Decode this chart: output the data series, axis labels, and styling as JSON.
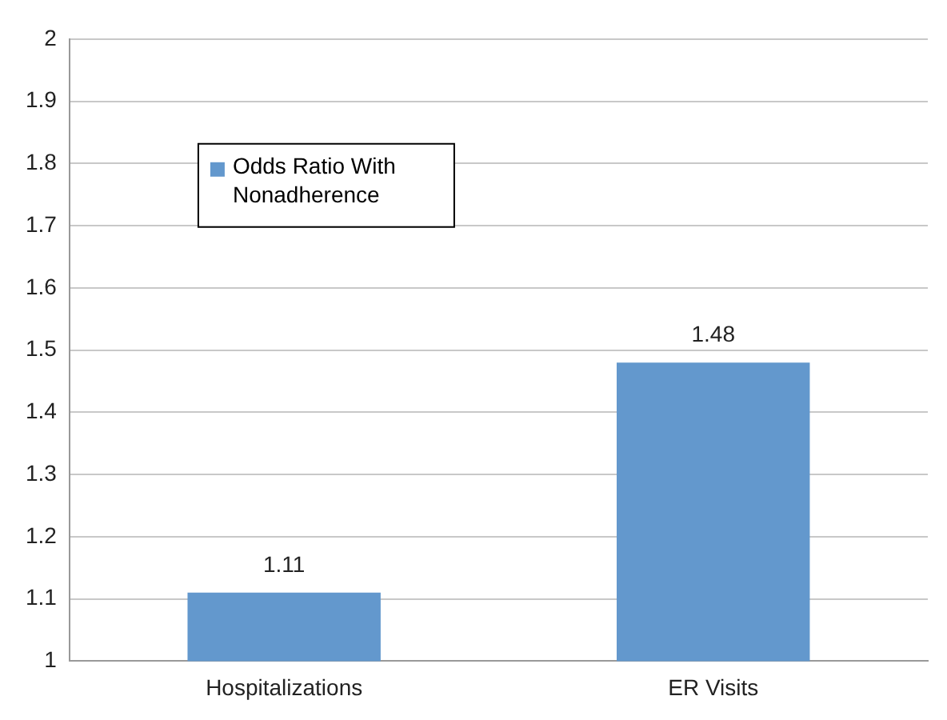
{
  "chart_data": {
    "type": "bar",
    "categories": [
      "Hospitalizations",
      "ER Visits"
    ],
    "series": [
      {
        "name": "Odds Ratio With Nonadherence",
        "color": "#6398cd",
        "values": [
          1.11,
          1.48
        ]
      }
    ],
    "ylim": [
      1,
      2
    ],
    "yticks": [
      1,
      1.1,
      1.2,
      1.3,
      1.4,
      1.5,
      1.6,
      1.7,
      1.8,
      1.9,
      2
    ],
    "grid": "y",
    "legend": "top left",
    "data_labels": true
  }
}
